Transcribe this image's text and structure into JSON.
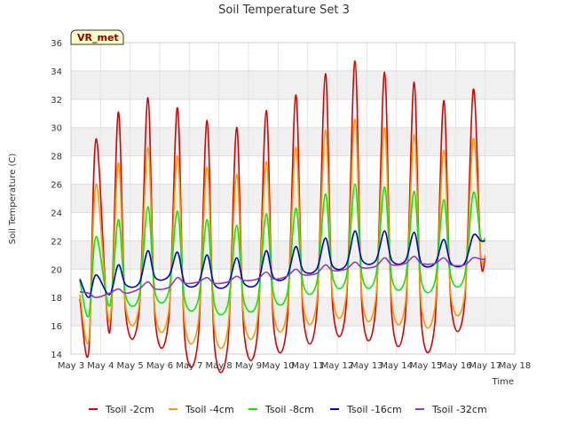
{
  "chart_data": {
    "type": "line",
    "title": "Soil Temperature Set 3",
    "xlabel": "Time",
    "ylabel": "Soil Temperature (C)",
    "badge": "VR_met",
    "grid": true,
    "legend_position": "bottom",
    "ylim": [
      14,
      36
    ],
    "yticks": [
      14,
      16,
      18,
      20,
      22,
      24,
      26,
      28,
      30,
      32,
      34,
      36
    ],
    "xlim": [
      3,
      18
    ],
    "x_unit": "day of May",
    "xtick_values": [
      3,
      4,
      5,
      6,
      7,
      8,
      9,
      10,
      11,
      12,
      13,
      14,
      15,
      16,
      17,
      18
    ],
    "xtick_labels": [
      "May 3",
      "May 4",
      "May 5",
      "May 6",
      "May 7",
      "May 8",
      "May 9",
      "May 10",
      "May 11",
      "May 12",
      "May 13",
      "May 14",
      "May 15",
      "May 16",
      "May 17",
      "May 18"
    ],
    "x": [
      3.3,
      3.6,
      3.85,
      4.3,
      4.6,
      4.85,
      5.3,
      5.6,
      5.85,
      6.3,
      6.6,
      6.85,
      7.3,
      7.6,
      7.85,
      8.3,
      8.6,
      8.85,
      9.3,
      9.6,
      9.85,
      10.3,
      10.6,
      10.85,
      11.3,
      11.6,
      11.85,
      12.3,
      12.6,
      12.85,
      13.3,
      13.6,
      13.85,
      14.3,
      14.6,
      14.85,
      15.3,
      15.6,
      15.85,
      16.3,
      16.6,
      16.85,
      17.0
    ],
    "series": [
      {
        "name": "Tsoil -2cm",
        "color": "#dd0000",
        "values": [
          17.9,
          14.2,
          29.2,
          15.5,
          31.1,
          16.8,
          17.0,
          32.1,
          16.3,
          16.4,
          31.4,
          15.0,
          15.1,
          30.5,
          14.6,
          14.7,
          30.0,
          15.5,
          15.4,
          31.2,
          16.0,
          16.1,
          32.3,
          16.7,
          16.8,
          33.8,
          17.3,
          17.4,
          34.7,
          17.0,
          17.2,
          33.9,
          16.6,
          16.7,
          33.2,
          16.1,
          16.2,
          31.9,
          17.4,
          17.5,
          32.7,
          20.7,
          20.8
        ]
      },
      {
        "name": "Tsoil -4cm",
        "color": "#ff9900",
        "values": [
          18.2,
          15.0,
          26.0,
          16.3,
          27.5,
          17.3,
          17.4,
          28.6,
          16.9,
          17.0,
          28.0,
          16.1,
          16.2,
          27.2,
          15.8,
          15.8,
          26.7,
          16.4,
          16.4,
          27.6,
          16.9,
          17.0,
          28.6,
          17.5,
          17.6,
          29.8,
          18.0,
          18.1,
          30.6,
          17.8,
          17.9,
          30.0,
          17.6,
          17.6,
          29.5,
          17.3,
          17.3,
          28.4,
          18.0,
          18.1,
          29.2,
          21.0,
          21.0
        ]
      },
      {
        "name": "Tsoil -8cm",
        "color": "#00ee00",
        "values": [
          19.2,
          16.7,
          22.3,
          17.4,
          23.5,
          18.1,
          18.1,
          24.4,
          18.3,
          18.4,
          24.1,
          17.8,
          17.8,
          23.5,
          17.5,
          17.5,
          23.1,
          17.7,
          17.7,
          23.9,
          18.2,
          18.2,
          24.3,
          18.9,
          19.0,
          25.3,
          19.4,
          19.4,
          26.0,
          19.4,
          19.5,
          25.8,
          19.3,
          19.3,
          25.5,
          19.1,
          19.1,
          24.9,
          19.4,
          19.5,
          25.4,
          22.2,
          22.2
        ]
      },
      {
        "name": "Tsoil -16cm",
        "color": "#0000cc",
        "values": [
          19.3,
          18.0,
          19.6,
          18.2,
          20.3,
          18.9,
          19.0,
          21.3,
          19.4,
          19.5,
          21.2,
          19.0,
          19.0,
          21.0,
          18.9,
          18.9,
          20.8,
          19.0,
          19.0,
          21.3,
          19.4,
          19.5,
          21.6,
          19.9,
          20.0,
          22.2,
          20.2,
          20.3,
          22.7,
          20.6,
          20.6,
          22.7,
          20.6,
          20.6,
          22.6,
          20.4,
          20.4,
          22.1,
          20.4,
          20.4,
          22.4,
          22.0,
          22.0
        ]
      },
      {
        "name": "Tsoil -32cm",
        "color": "#9933cc",
        "values": [
          18.4,
          18.3,
          18.0,
          18.3,
          18.6,
          18.3,
          18.6,
          19.1,
          18.6,
          18.7,
          19.4,
          19.0,
          19.1,
          19.4,
          19.0,
          19.1,
          19.5,
          19.2,
          19.3,
          19.8,
          19.3,
          19.5,
          20.0,
          19.6,
          19.7,
          20.3,
          19.9,
          20.0,
          20.5,
          20.1,
          20.2,
          20.8,
          20.3,
          20.4,
          20.9,
          20.4,
          20.4,
          20.8,
          20.3,
          20.3,
          20.8,
          20.7,
          20.7
        ]
      }
    ]
  }
}
